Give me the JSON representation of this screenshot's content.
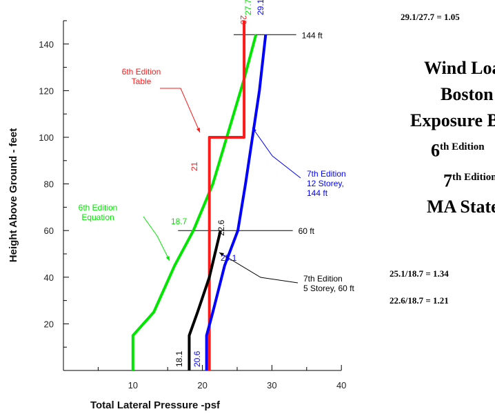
{
  "chart_data": {
    "type": "line",
    "xlabel": "Total Lateral Pressure -psf",
    "ylabel": "Height Above Ground - feet",
    "xlim": [
      0,
      40
    ],
    "ylim": [
      0,
      150
    ],
    "xticks": [
      10,
      20,
      30,
      40
    ],
    "yticks": [
      20,
      40,
      60,
      80,
      100,
      120,
      140
    ],
    "grid": false,
    "series": [
      {
        "color": "#00e600",
        "x": [
          10,
          10,
          13,
          16,
          18.7,
          21.5,
          24,
          26,
          27.7
        ],
        "y": [
          0,
          15,
          25,
          45,
          60,
          80,
          105,
          125,
          144
        ]
      },
      {
        "color": "#ff1a1a",
        "x": [
          21,
          21,
          26,
          26
        ],
        "y": [
          0,
          100,
          100,
          150
        ]
      },
      {
        "color": "#0000ff",
        "x": [
          20.6,
          20.6,
          21.5,
          23.2,
          25.1,
          26.2,
          27.2,
          28.2,
          29.1
        ],
        "y": [
          0,
          15,
          25,
          45,
          60,
          80,
          100,
          120,
          144
        ]
      },
      {
        "color": "#000000",
        "x": [
          18.1,
          18.1,
          19.3,
          21,
          22.6
        ],
        "y": [
          0,
          15,
          25,
          40,
          60
        ]
      }
    ],
    "reference_lines": [
      {
        "y": 144,
        "x_range": [
          24.5,
          33.5
        ],
        "label": "144 ft"
      },
      {
        "y": 60,
        "x_range": [
          16.5,
          33
        ],
        "label": "60 ft"
      }
    ],
    "value_labels": [
      "26",
      "27.7",
      "29.1",
      "21",
      "22.6",
      "18.7",
      "25.1",
      "18.1",
      "20.6"
    ],
    "annotations": [
      {
        "lines": [
          "6th Edition",
          "Table"
        ],
        "color": "#ff1a1a"
      },
      {
        "lines": [
          "7th Edition",
          "12 Storey,",
          "144 ft"
        ],
        "color": "#0000ff"
      },
      {
        "lines": [
          "6th Edition",
          "Equation"
        ],
        "color": "#00e600"
      },
      {
        "lines": [
          "7th Edition",
          "5 Storey, 60 ft"
        ],
        "color": "#000000"
      }
    ]
  },
  "side_panel": {
    "ratio_top": "29.1/27.7 = 1.05",
    "title_lines": [
      {
        "text": "Wind Load",
        "sup": ""
      },
      {
        "text": "Boston",
        "sup": ""
      },
      {
        "text": "Exposure B",
        "sup": ""
      },
      {
        "text": "6",
        "sup": "th Edition"
      },
      {
        "text": "7",
        "sup": "th Edition"
      },
      {
        "text": "MA State",
        "sup": ""
      }
    ],
    "ratio_bottom_1": "25.1/18.7 = 1.34",
    "ratio_bottom_2": "22.6/18.7 = 1.21"
  }
}
